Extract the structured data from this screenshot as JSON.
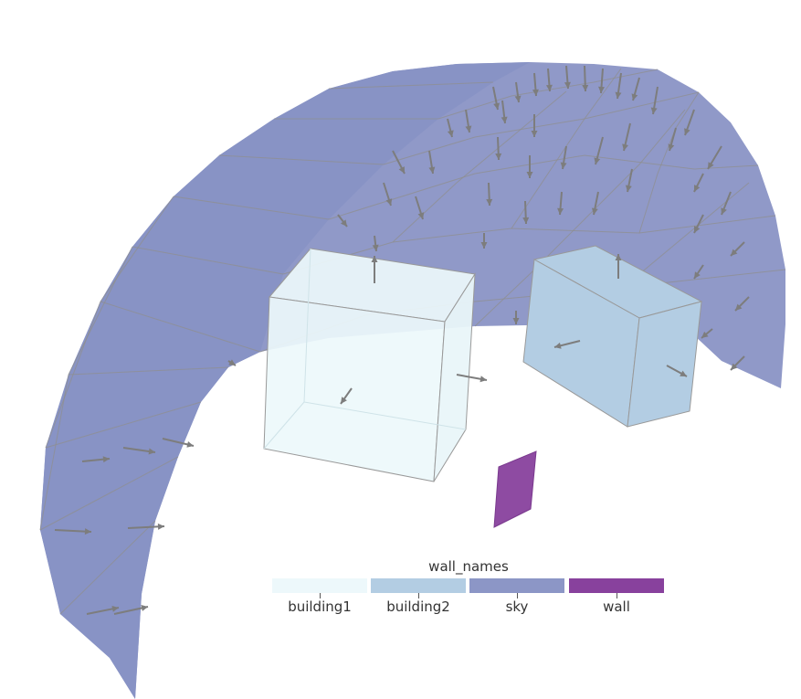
{
  "scene": {
    "categories": [
      {
        "key": "building1",
        "color": "#edf8fb"
      },
      {
        "key": "building2",
        "color": "#b3cde3"
      },
      {
        "key": "sky",
        "color": "#8c96c6"
      },
      {
        "key": "wall",
        "color": "#88419d"
      }
    ],
    "edge_color": "#8f8f8f",
    "arrow_color": "#7d7d7d"
  },
  "legend": {
    "title": "wall_names",
    "items": [
      {
        "label": "building1",
        "color": "#edf8fb"
      },
      {
        "label": "building2",
        "color": "#b3cde3"
      },
      {
        "label": "sky",
        "color": "#8c96c6"
      },
      {
        "label": "wall",
        "color": "#88419d"
      }
    ]
  }
}
